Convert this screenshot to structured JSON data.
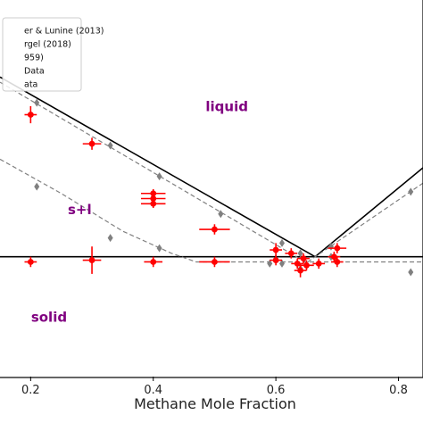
{
  "chart_data": {
    "type": "scatter",
    "xlabel": "Methane Mole Fraction",
    "ylabel": "",
    "xlim": [
      0.15,
      0.84
    ],
    "ylim": [
      82,
      104
    ],
    "x_ticks": [
      0.2,
      0.4,
      0.6,
      0.8
    ],
    "x_tick_labels": [
      "0.2",
      "0.4",
      "0.6",
      "0.8"
    ],
    "grid": false,
    "legend_position": "top-left",
    "legend": [
      {
        "label": "er & Lunine (2013)",
        "style": "solid-line"
      },
      {
        "label": "rgel (2018)",
        "style": "dashed-line"
      },
      {
        "label": "959)",
        "style": "gray-diamond"
      },
      {
        "label": "Data",
        "style": "red-errorbar"
      },
      {
        "label": "ata",
        "style": "red-errorbar"
      }
    ],
    "region_labels": [
      {
        "text": "liquid",
        "x": 0.52,
        "y": 97.5
      },
      {
        "text": "s+l",
        "x": 0.28,
        "y": 91.5
      },
      {
        "text": "solid",
        "x": 0.23,
        "y": 85.2
      }
    ],
    "region_label_color": "#800080",
    "series": [
      {
        "style": "solid-line",
        "color": "#000000",
        "x": [
          0.15,
          0.664,
          0.84
        ],
        "y": [
          99.5,
          89.0,
          94.2
        ]
      },
      {
        "style": "solid-line",
        "color": "#000000",
        "x": [
          0.15,
          0.84
        ],
        "y": [
          89.0,
          89.0
        ]
      },
      {
        "style": "dashed-line",
        "color": "#808080",
        "x": [
          0.15,
          0.65,
          0.84
        ],
        "y": [
          99.2,
          88.65,
          93.3
        ]
      },
      {
        "style": "dashed-line",
        "color": "#808080",
        "x": [
          0.15,
          0.25,
          0.35,
          0.43,
          0.47,
          0.84
        ],
        "y": [
          94.7,
          92.7,
          90.5,
          89.2,
          88.7,
          88.7
        ]
      },
      {
        "style": "gray-diamond",
        "color": "#808080",
        "x": [
          0.21,
          0.33,
          0.41,
          0.51,
          0.61,
          0.64,
          0.65,
          0.69,
          0.82,
          0.21,
          0.33,
          0.41,
          0.59,
          0.61,
          0.64,
          0.69,
          0.82
        ],
        "y": [
          98.0,
          95.5,
          93.7,
          91.5,
          89.8,
          89.2,
          88.5,
          89.6,
          92.8,
          93.1,
          90.1,
          89.5,
          88.6,
          88.6,
          88.3,
          89.0,
          88.1
        ]
      },
      {
        "style": "red-errorbar",
        "color": "#ff0000",
        "points": [
          {
            "x": 0.2,
            "y": 97.3,
            "xerr": 0.01,
            "yerr": 0.5
          },
          {
            "x": 0.3,
            "y": 95.6,
            "xerr": 0.015,
            "yerr": 0.35
          },
          {
            "x": 0.4,
            "y": 92.7,
            "xerr": 0.02,
            "yerr": 0.25
          },
          {
            "x": 0.4,
            "y": 92.4,
            "xerr": 0.02,
            "yerr": 0.25
          },
          {
            "x": 0.4,
            "y": 92.1,
            "xerr": 0.02,
            "yerr": 0.25
          },
          {
            "x": 0.5,
            "y": 90.6,
            "xerr": 0.025,
            "yerr": 0.3
          },
          {
            "x": 0.2,
            "y": 88.7,
            "xerr": 0.01,
            "yerr": 0.3
          },
          {
            "x": 0.3,
            "y": 88.8,
            "xerr": 0.015,
            "yerr": 0.8
          },
          {
            "x": 0.4,
            "y": 88.7,
            "xerr": 0.015,
            "yerr": 0.3
          },
          {
            "x": 0.5,
            "y": 88.7,
            "xerr": 0.025,
            "yerr": 0.3
          },
          {
            "x": 0.6,
            "y": 89.4,
            "xerr": 0.01,
            "yerr": 0.4
          },
          {
            "x": 0.6,
            "y": 88.8,
            "xerr": 0.01,
            "yerr": 0.3
          },
          {
            "x": 0.625,
            "y": 89.2,
            "xerr": 0.01,
            "yerr": 0.3
          },
          {
            "x": 0.635,
            "y": 88.6,
            "xerr": 0.01,
            "yerr": 0.3
          },
          {
            "x": 0.64,
            "y": 88.2,
            "xerr": 0.01,
            "yerr": 0.4
          },
          {
            "x": 0.645,
            "y": 88.9,
            "xerr": 0.01,
            "yerr": 0.3
          },
          {
            "x": 0.65,
            "y": 88.5,
            "xerr": 0.012,
            "yerr": 0.3
          },
          {
            "x": 0.67,
            "y": 88.6,
            "xerr": 0.01,
            "yerr": 0.3
          },
          {
            "x": 0.695,
            "y": 89.0,
            "xerr": 0.01,
            "yerr": 0.3
          },
          {
            "x": 0.7,
            "y": 89.5,
            "xerr": 0.015,
            "yerr": 0.3
          },
          {
            "x": 0.7,
            "y": 88.7,
            "xerr": 0.01,
            "yerr": 0.3
          }
        ]
      }
    ]
  }
}
